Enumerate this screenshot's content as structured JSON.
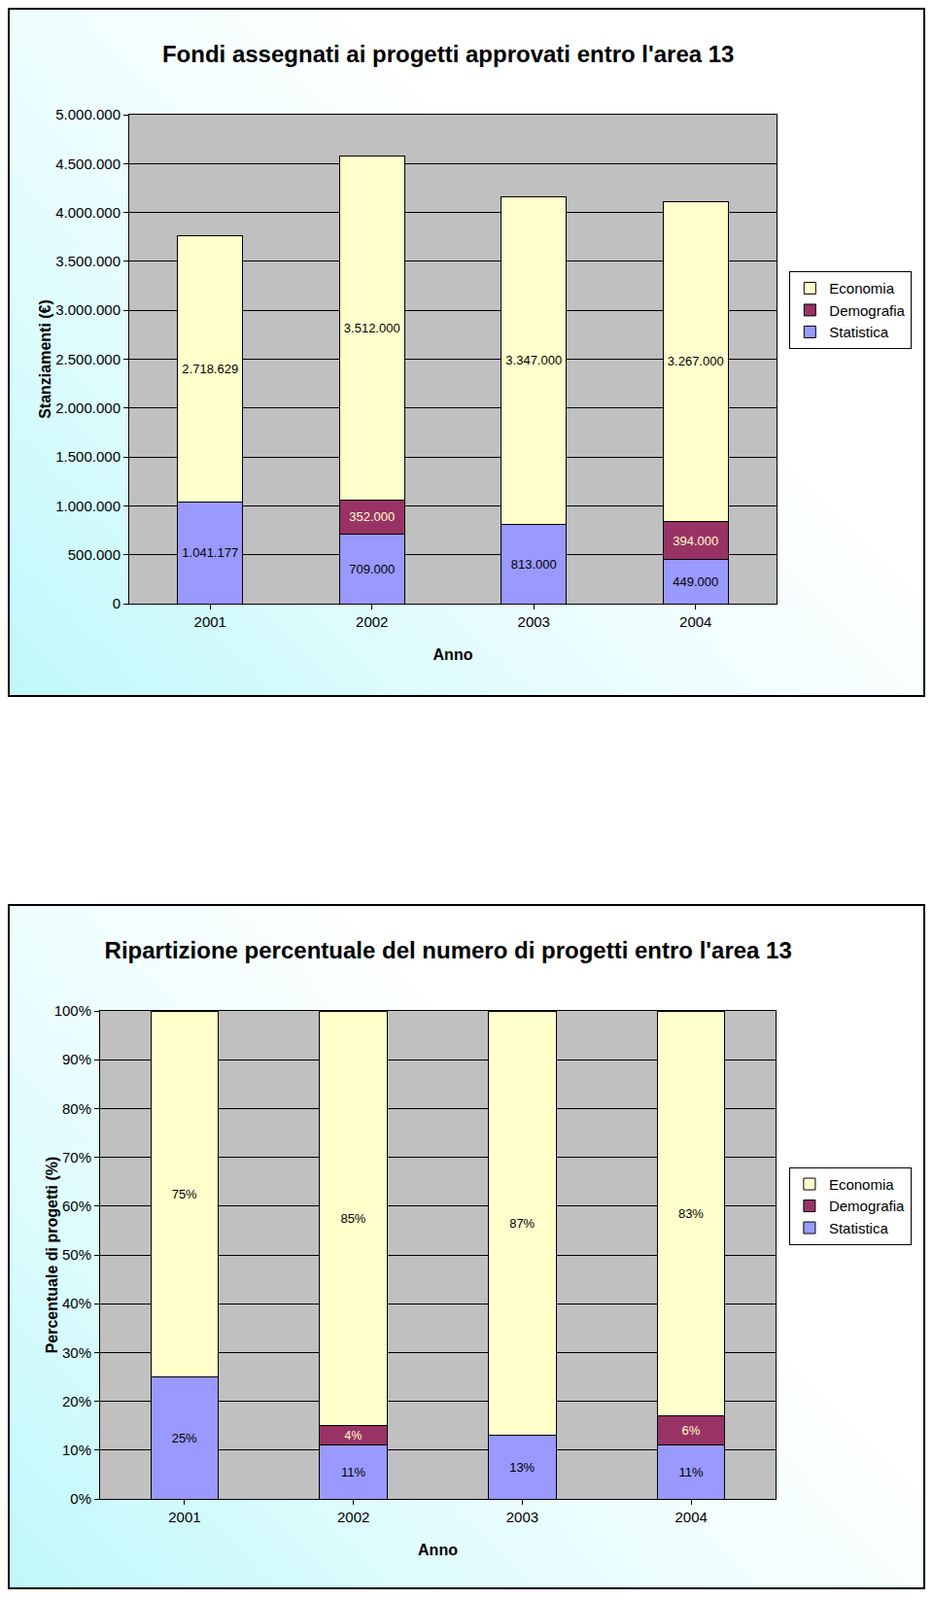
{
  "chart_data": [
    {
      "type": "bar",
      "title": "Fondi assegnati ai progetti approvati entro l'area 13",
      "x_label": "Anno",
      "y_label": "Stanziamenti (€)",
      "categories": [
        "2001",
        "2002",
        "2003",
        "2004"
      ],
      "series": [
        {
          "name": "Statistica",
          "color": "#9999ff",
          "values": [
            1041177,
            709000,
            813000,
            449000
          ],
          "value_labels": [
            "1.041.177",
            "709.000",
            "813.000",
            "449.000"
          ]
        },
        {
          "name": "Demografia",
          "color": "#993366",
          "values": [
            null,
            352000,
            null,
            394000
          ],
          "value_labels": [
            null,
            "352.000",
            null,
            "394.000"
          ]
        },
        {
          "name": "Economia",
          "color": "#ffffcc",
          "values": [
            2718629,
            3512000,
            3347000,
            3267000
          ],
          "value_labels": [
            "2.718.629",
            "3.512.000",
            "3.347.000",
            "3.267.000"
          ]
        }
      ],
      "ylim": [
        0,
        5000000
      ],
      "yticks": [
        0,
        {
          "value": 500000,
          "label": "500.000"
        },
        {
          "value": 1000000,
          "label": "1.000.000"
        },
        {
          "value": 1500000,
          "label": "1.500.000"
        },
        {
          "value": 2000000,
          "label": "2.000.000"
        },
        {
          "value": 2500000,
          "label": "2.500.000"
        },
        {
          "value": 3000000,
          "label": "3.000.000"
        },
        {
          "value": 3500000,
          "label": "3.500.000"
        },
        {
          "value": 4000000,
          "label": "4.000.000"
        },
        {
          "value": 4500000,
          "label": "4.500.000"
        },
        {
          "value": 5000000,
          "label": "5.000.000"
        }
      ],
      "grid": true,
      "stacked": true,
      "data_labels": true,
      "legend": "right"
    },
    {
      "type": "bar",
      "title": "Ripartizione percentuale del numero di progetti entro l'area 13",
      "x_label": "Anno",
      "y_label": "Percentuale di progetti (%)",
      "categories": [
        "2001",
        "2002",
        "2003",
        "2004"
      ],
      "series": [
        {
          "name": "Statistica",
          "color": "#9999ff",
          "values": [
            25,
            11,
            13,
            11
          ],
          "value_labels": [
            "25%",
            "11%",
            "13%",
            "11%"
          ]
        },
        {
          "name": "Demografia",
          "color": "#993366",
          "values": [
            null,
            4,
            null,
            6
          ],
          "value_labels": [
            null,
            "4%",
            null,
            "6%"
          ]
        },
        {
          "name": "Economia",
          "color": "#ffffcc",
          "values": [
            75,
            85,
            87,
            83
          ],
          "value_labels": [
            "75%",
            "85%",
            "87%",
            "83%"
          ]
        }
      ],
      "ylim": [
        0,
        100
      ],
      "yticks": [
        {
          "value": 0,
          "label": "0%"
        },
        {
          "value": 10,
          "label": "10%"
        },
        {
          "value": 20,
          "label": "20%"
        },
        {
          "value": 30,
          "label": "30%"
        },
        {
          "value": 40,
          "label": "40%"
        },
        {
          "value": 50,
          "label": "50%"
        },
        {
          "value": 60,
          "label": "60%"
        },
        {
          "value": 70,
          "label": "70%"
        },
        {
          "value": 80,
          "label": "80%"
        },
        {
          "value": 90,
          "label": "90%"
        },
        {
          "value": 100,
          "label": "100%"
        }
      ],
      "grid": true,
      "stacked": true,
      "data_labels": true,
      "legend": "right"
    }
  ]
}
